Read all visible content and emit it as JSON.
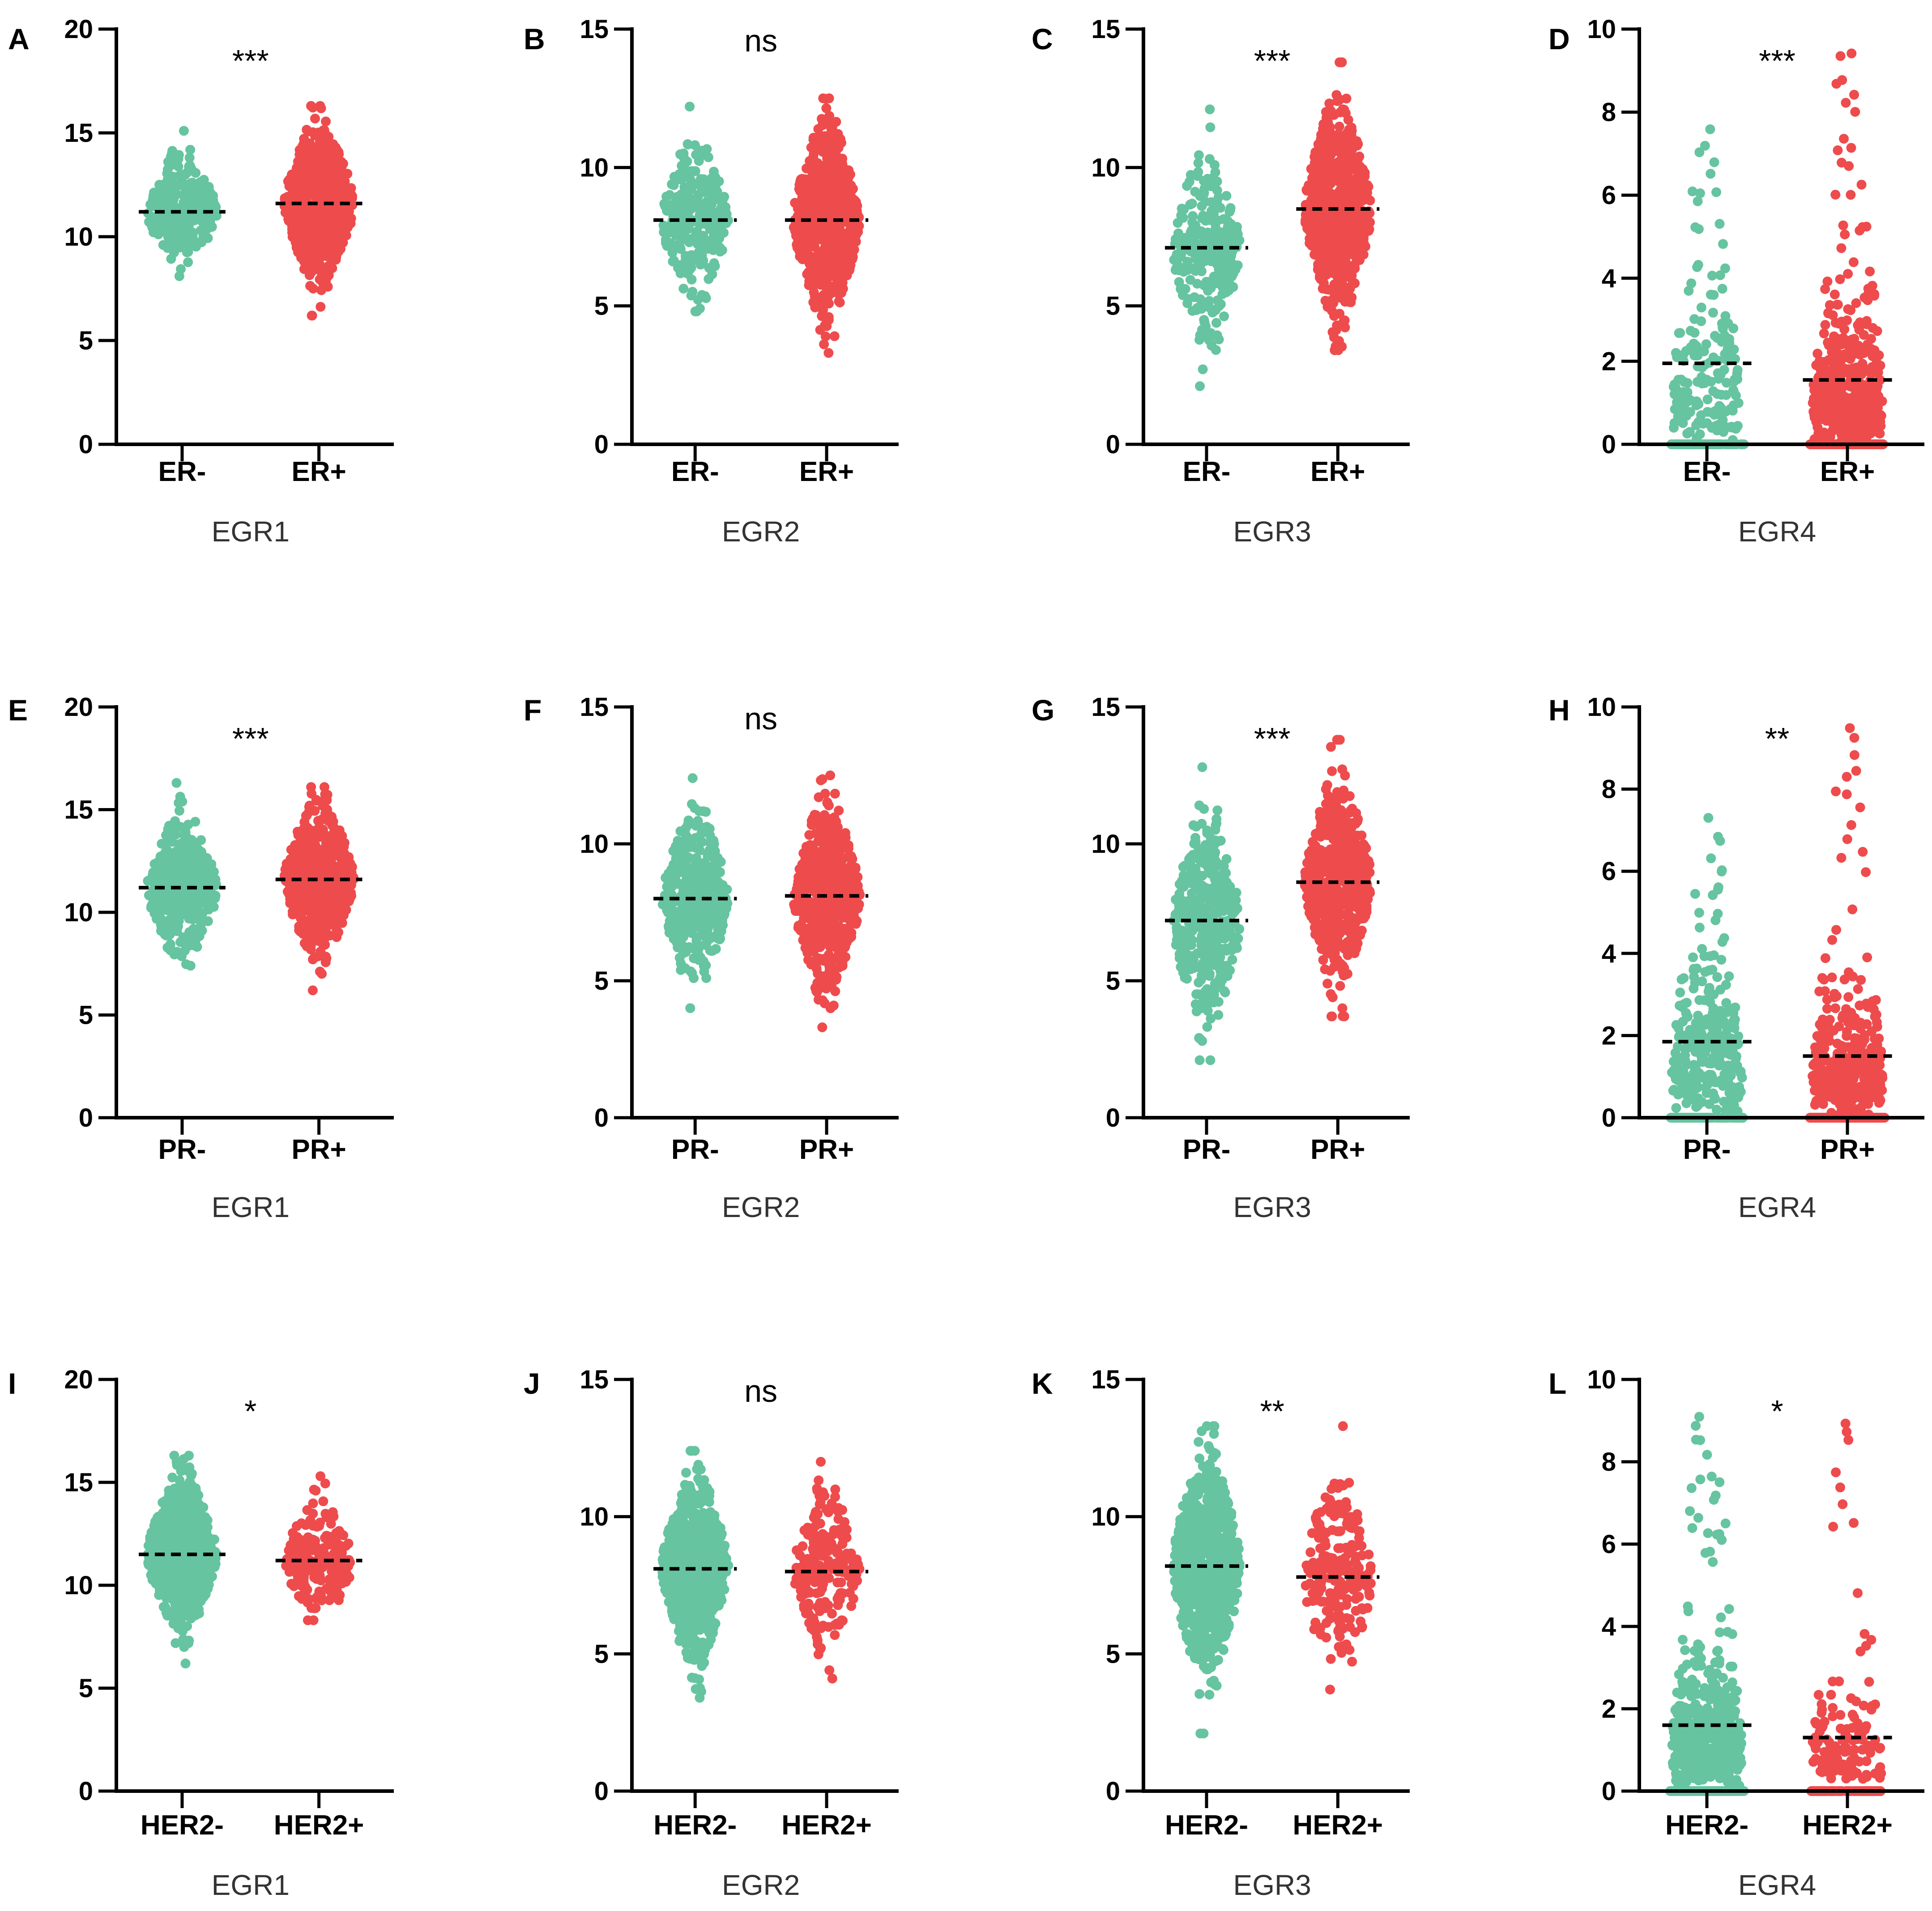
{
  "figure": {
    "colors": {
      "negative": "#66c4a0",
      "positive": "#ee4b4d",
      "axis": "#000000",
      "median_line": "#000000",
      "gene_label": "#333333"
    }
  },
  "chart_data": [
    {
      "panel": "A",
      "type": "scatter",
      "gene": "EGR1",
      "title": "EGR1",
      "groups": [
        "ER-",
        "ER+"
      ],
      "significance": "***",
      "ylim": [
        0,
        20
      ],
      "yticks": [
        0,
        5,
        10,
        15,
        20
      ],
      "medians": [
        11.2,
        11.6
      ],
      "ranges": [
        [
          8.1,
          15.1
        ],
        [
          6.2,
          16.3
        ]
      ],
      "sizes": [
        260,
        700
      ],
      "zero_floor": [
        0,
        0
      ]
    },
    {
      "panel": "B",
      "type": "scatter",
      "gene": "EGR2",
      "title": "EGR2",
      "groups": [
        "ER-",
        "ER+"
      ],
      "significance": "ns",
      "ylim": [
        0,
        15
      ],
      "yticks": [
        0,
        5,
        10,
        15
      ],
      "medians": [
        8.1,
        8.1
      ],
      "ranges": [
        [
          4.8,
          12.2
        ],
        [
          3.3,
          12.5
        ]
      ],
      "sizes": [
        260,
        700
      ],
      "zero_floor": [
        0,
        0
      ]
    },
    {
      "panel": "C",
      "type": "scatter",
      "gene": "EGR3",
      "title": "EGR3",
      "groups": [
        "ER-",
        "ER+"
      ],
      "significance": "***",
      "ylim": [
        0,
        15
      ],
      "yticks": [
        0,
        5,
        10,
        15
      ],
      "medians": [
        7.1,
        8.5
      ],
      "ranges": [
        [
          2.1,
          12.1
        ],
        [
          3.4,
          13.8
        ]
      ],
      "sizes": [
        260,
        700
      ],
      "zero_floor": [
        0,
        0
      ]
    },
    {
      "panel": "D",
      "type": "scatter",
      "gene": "EGR4",
      "title": "EGR4",
      "groups": [
        "ER-",
        "ER+"
      ],
      "significance": "***",
      "ylim": [
        0,
        10
      ],
      "yticks": [
        0,
        2,
        4,
        6,
        8,
        10
      ],
      "medians": [
        1.95,
        1.55
      ],
      "ranges": [
        [
          0,
          7.6
        ],
        [
          0,
          9.5
        ]
      ],
      "sizes": [
        260,
        700
      ],
      "zero_floor": [
        0.35,
        0.4
      ]
    },
    {
      "panel": "E",
      "type": "scatter",
      "gene": "EGR1",
      "title": "EGR1",
      "groups": [
        "PR-",
        "PR+"
      ],
      "significance": "***",
      "ylim": [
        0,
        20
      ],
      "yticks": [
        0,
        5,
        10,
        15,
        20
      ],
      "medians": [
        11.2,
        11.6
      ],
      "ranges": [
        [
          7.4,
          16.3
        ],
        [
          6.2,
          16.1
        ]
      ],
      "sizes": [
        400,
        560
      ],
      "zero_floor": [
        0,
        0
      ]
    },
    {
      "panel": "F",
      "type": "scatter",
      "gene": "EGR2",
      "title": "EGR2",
      "groups": [
        "PR-",
        "PR+"
      ],
      "significance": "ns",
      "ylim": [
        0,
        15
      ],
      "yticks": [
        0,
        5,
        10,
        15
      ],
      "medians": [
        8.0,
        8.1
      ],
      "ranges": [
        [
          4.0,
          12.4
        ],
        [
          3.3,
          12.5
        ]
      ],
      "sizes": [
        400,
        560
      ],
      "zero_floor": [
        0,
        0
      ]
    },
    {
      "panel": "G",
      "type": "scatter",
      "gene": "EGR3",
      "title": "EGR3",
      "groups": [
        "PR-",
        "PR+"
      ],
      "significance": "***",
      "ylim": [
        0,
        15
      ],
      "yticks": [
        0,
        5,
        10,
        15
      ],
      "medians": [
        7.2,
        8.6
      ],
      "ranges": [
        [
          2.1,
          12.8
        ],
        [
          3.7,
          13.8
        ]
      ],
      "sizes": [
        400,
        560
      ],
      "zero_floor": [
        0,
        0
      ]
    },
    {
      "panel": "H",
      "type": "scatter",
      "gene": "EGR4",
      "title": "EGR4",
      "groups": [
        "PR-",
        "PR+"
      ],
      "significance": "**",
      "ylim": [
        0,
        10
      ],
      "yticks": [
        0,
        2,
        4,
        6,
        8,
        10
      ],
      "medians": [
        1.85,
        1.5
      ],
      "ranges": [
        [
          0,
          7.6
        ],
        [
          0,
          9.5
        ]
      ],
      "sizes": [
        400,
        560
      ],
      "zero_floor": [
        0.35,
        0.4
      ]
    },
    {
      "panel": "I",
      "type": "scatter",
      "gene": "EGR1",
      "title": "EGR1",
      "groups": [
        "HER2-",
        "HER2+"
      ],
      "significance": "*",
      "ylim": [
        0,
        20
      ],
      "yticks": [
        0,
        5,
        10,
        15,
        20
      ],
      "medians": [
        11.5,
        11.2
      ],
      "ranges": [
        [
          6.2,
          16.3
        ],
        [
          8.3,
          15.3
        ]
      ],
      "sizes": [
        700,
        210
      ],
      "zero_floor": [
        0,
        0
      ]
    },
    {
      "panel": "J",
      "type": "scatter",
      "gene": "EGR2",
      "title": "EGR2",
      "groups": [
        "HER2-",
        "HER2+"
      ],
      "significance": "ns",
      "ylim": [
        0,
        15
      ],
      "yticks": [
        0,
        5,
        10,
        15
      ],
      "medians": [
        8.1,
        8.0
      ],
      "ranges": [
        [
          3.4,
          12.4
        ],
        [
          4.1,
          12.0
        ]
      ],
      "sizes": [
        700,
        210
      ],
      "zero_floor": [
        0,
        0
      ]
    },
    {
      "panel": "K",
      "type": "scatter",
      "gene": "EGR3",
      "title": "EGR3",
      "groups": [
        "HER2-",
        "HER2+"
      ],
      "significance": "**",
      "ylim": [
        0,
        15
      ],
      "yticks": [
        0,
        5,
        10,
        15
      ],
      "medians": [
        8.2,
        7.8
      ],
      "ranges": [
        [
          2.1,
          13.3
        ],
        [
          3.7,
          13.3
        ]
      ],
      "sizes": [
        700,
        210
      ],
      "zero_floor": [
        0,
        0
      ]
    },
    {
      "panel": "L",
      "type": "scatter",
      "gene": "EGR4",
      "title": "EGR4",
      "groups": [
        "HER2-",
        "HER2+"
      ],
      "significance": "*",
      "ylim": [
        0,
        10
      ],
      "yticks": [
        0,
        2,
        4,
        6,
        8,
        10
      ],
      "medians": [
        1.6,
        1.3
      ],
      "ranges": [
        [
          0,
          9.5
        ],
        [
          0,
          9.0
        ]
      ],
      "sizes": [
        700,
        210
      ],
      "zero_floor": [
        0.4,
        0.4
      ]
    }
  ]
}
